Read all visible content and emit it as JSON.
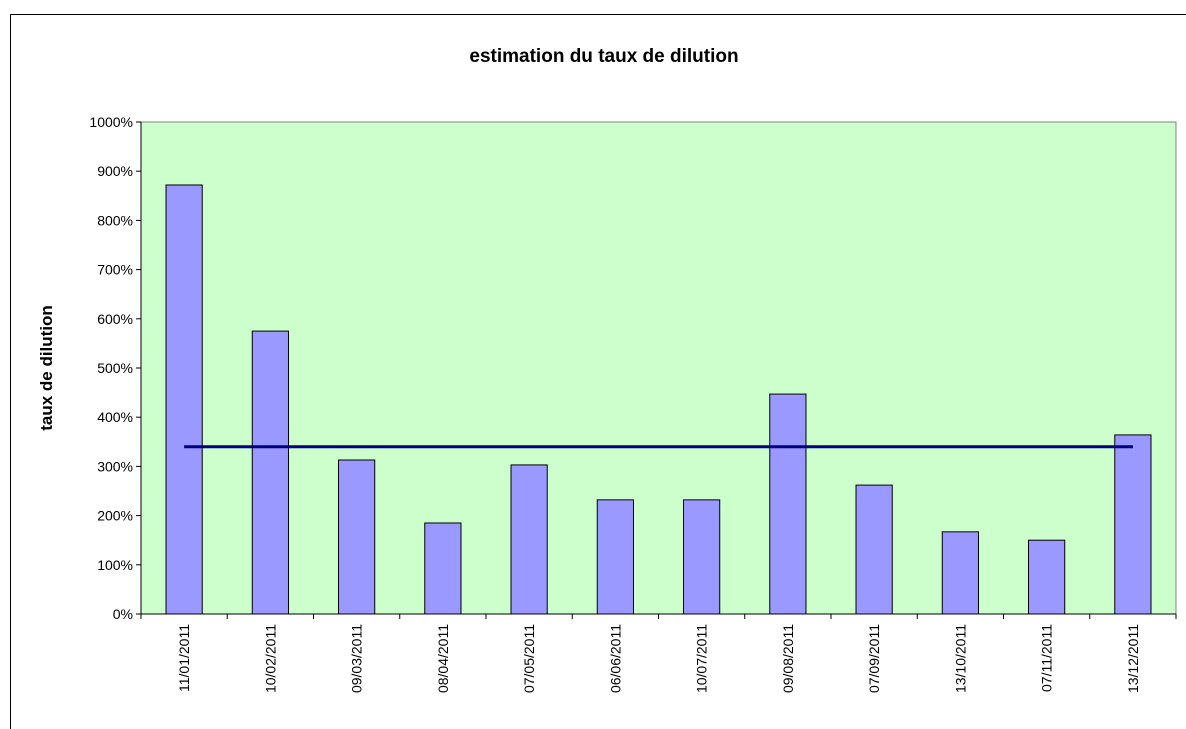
{
  "chart_data": {
    "type": "bar",
    "title": "estimation du taux de dilution",
    "y_label": "taux de dilution",
    "categories": [
      "11/01/2011",
      "10/02/2011",
      "09/03/2011",
      "08/04/2011",
      "07/05/2011",
      "06/06/2011",
      "10/07/2011",
      "09/08/2011",
      "07/09/2011",
      "13/10/2011",
      "07/11/2011",
      "13/12/2011"
    ],
    "series": [
      {
        "type": "bar",
        "color": "#9999ff",
        "values": [
          872,
          575,
          313,
          185,
          303,
          232,
          232,
          447,
          262,
          167,
          150,
          364
        ]
      },
      {
        "type": "line",
        "color": "#000080",
        "values": [
          340,
          340,
          340,
          340,
          340,
          340,
          340,
          340,
          340,
          340,
          340,
          340
        ]
      }
    ],
    "ylim": [
      0,
      1000
    ],
    "yticks": [
      {
        "value": 0,
        "label": "0%"
      },
      {
        "value": 100,
        "label": "100%"
      },
      {
        "value": 200,
        "label": "200%"
      },
      {
        "value": 300,
        "label": "300%"
      },
      {
        "value": 400,
        "label": "400%"
      },
      {
        "value": 500,
        "label": "500%"
      },
      {
        "value": 600,
        "label": "600%"
      },
      {
        "value": 700,
        "label": "700%"
      },
      {
        "value": 800,
        "label": "800%"
      },
      {
        "value": 900,
        "label": "900%"
      },
      {
        "value": 1000,
        "label": "1000%"
      }
    ],
    "plot_background": "#ccffcc"
  }
}
